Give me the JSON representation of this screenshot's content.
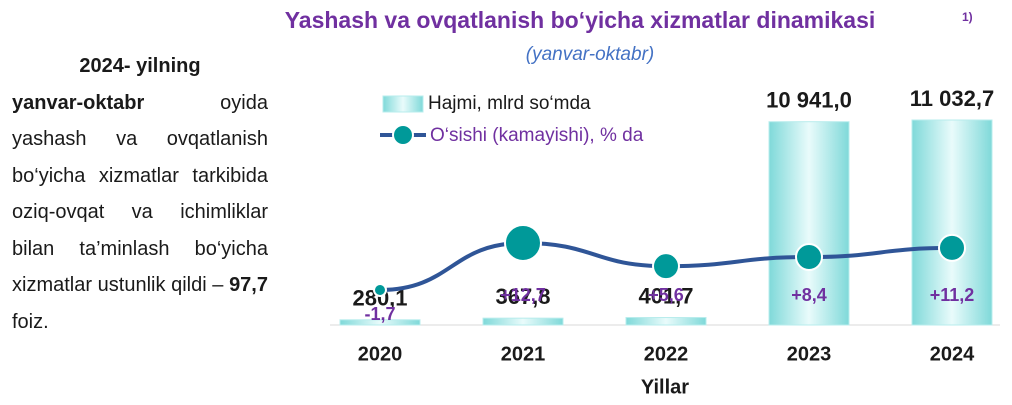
{
  "side_text": {
    "heading": "2024- yilning",
    "lead": "yanvar-oktabr",
    "body": " oyida yashash va ovqatlanish bo‘yicha xizmatlar tarkibida oziq-ovqat va ichimliklar bilan ta’minlash bo‘yicha xizmatlar ustunlik qildi – ",
    "figure": "97,7",
    "tail": " foiz."
  },
  "chart_data": {
    "type": "bar-line",
    "title": "Yashash va ovqatlanish bo‘yicha xizmatlar dinamikasi",
    "footnote": "1)",
    "subtitle": "(yanvar-oktabr)",
    "x_label": "Yillar",
    "categories": [
      "2020",
      "2021",
      "2022",
      "2023",
      "2024"
    ],
    "series": [
      {
        "name": "Hajmi, mlrd so‘mda",
        "type": "bar",
        "color": "#b7ecec",
        "values": [
          280.1,
          367.8,
          401.7,
          10941.0,
          11032.7
        ],
        "value_labels": [
          "280,1",
          "367,8",
          "401,7",
          "10 941,0",
          "11 032,7"
        ]
      },
      {
        "name": "O‘sishi (kamayishi), % da",
        "type": "line",
        "color": "#2f5597",
        "marker_color": "#009999",
        "values": [
          -1.7,
          12.7,
          5.6,
          8.4,
          11.2
        ],
        "value_labels": [
          "-1,7",
          "+12,7",
          "+5,6",
          "+8,4",
          "+11,2"
        ]
      }
    ]
  }
}
